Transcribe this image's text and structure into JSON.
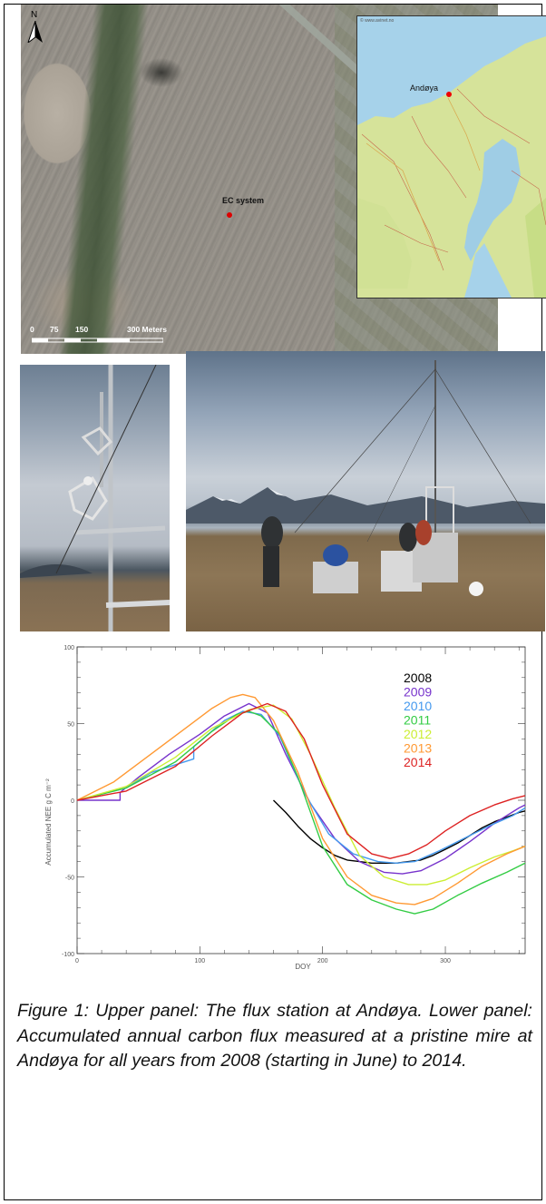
{
  "aerial": {
    "north_label": "N",
    "site_label": "EC system",
    "scale_ticks": [
      "0",
      "75",
      "150",
      "300 Meters"
    ]
  },
  "inset_map": {
    "credit": "© www.avinet.no",
    "place_label": "Andøya"
  },
  "chart_data": {
    "type": "line",
    "xlabel": "DOY",
    "ylabel": "Accumulated NEE g C m⁻²",
    "xlim": [
      0,
      365
    ],
    "ylim": [
      -100,
      100
    ],
    "xticks": [
      "0",
      "100",
      "200",
      "300"
    ],
    "yticks": [
      "100",
      "50",
      "0",
      "-50",
      "-100"
    ],
    "legend_position": "top-right",
    "series": [
      {
        "name": "2008",
        "color": "#000000",
        "x": [
          160,
          170,
          180,
          190,
          200,
          210,
          220,
          230,
          240,
          250,
          260,
          270,
          280,
          290,
          300,
          310,
          320,
          330,
          340,
          350,
          360,
          365
        ],
        "y": [
          0,
          -8,
          -17,
          -25,
          -31,
          -36,
          -39,
          -40,
          -41,
          -41,
          -41,
          -40,
          -39,
          -36,
          -32,
          -28,
          -23,
          -18,
          -14,
          -11,
          -8,
          -7
        ]
      },
      {
        "name": "2009",
        "color": "#7733cc",
        "x": [
          0,
          35,
          35,
          50,
          75,
          100,
          120,
          140,
          155,
          170,
          190,
          210,
          230,
          250,
          265,
          280,
          300,
          320,
          340,
          360,
          365
        ],
        "y": [
          0,
          0,
          5,
          15,
          30,
          43,
          55,
          63,
          57,
          30,
          -2,
          -25,
          -40,
          -47,
          -48,
          -46,
          -38,
          -27,
          -15,
          -5,
          -3
        ]
      },
      {
        "name": "2010",
        "color": "#4499ee",
        "x": [
          0,
          40,
          60,
          95,
          95,
          120,
          135,
          150,
          165,
          185,
          205,
          225,
          245,
          260,
          275,
          295,
          315,
          335,
          355,
          365
        ],
        "y": [
          0,
          8,
          18,
          27,
          35,
          52,
          58,
          56,
          42,
          5,
          -22,
          -35,
          -40,
          -41,
          -40,
          -33,
          -25,
          -17,
          -10,
          -5
        ]
      },
      {
        "name": "2011",
        "color": "#33cc44",
        "x": [
          0,
          40,
          80,
          110,
          130,
          140,
          150,
          165,
          180,
          200,
          220,
          240,
          260,
          275,
          290,
          310,
          330,
          350,
          365
        ],
        "y": [
          0,
          8,
          25,
          45,
          56,
          58,
          55,
          43,
          15,
          -30,
          -55,
          -65,
          -71,
          -74,
          -71,
          -62,
          -54,
          -47,
          -41
        ]
      },
      {
        "name": "2012",
        "color": "#ccee33",
        "x": [
          0,
          40,
          80,
          110,
          140,
          160,
          175,
          190,
          210,
          230,
          250,
          270,
          285,
          300,
          320,
          340,
          355,
          365
        ],
        "y": [
          0,
          9,
          28,
          47,
          59,
          62,
          53,
          30,
          -5,
          -36,
          -50,
          -55,
          -55,
          -52,
          -44,
          -37,
          -33,
          -30
        ]
      },
      {
        "name": "2013",
        "color": "#ff9933",
        "x": [
          0,
          30,
          60,
          90,
          110,
          125,
          135,
          145,
          160,
          180,
          200,
          220,
          240,
          260,
          275,
          290,
          310,
          330,
          350,
          365
        ],
        "y": [
          0,
          12,
          30,
          48,
          60,
          67,
          69,
          67,
          52,
          18,
          -25,
          -50,
          -62,
          -67,
          -68,
          -64,
          -54,
          -43,
          -35,
          -30
        ]
      },
      {
        "name": "2014",
        "color": "#dd2222",
        "x": [
          0,
          40,
          80,
          110,
          135,
          155,
          170,
          185,
          200,
          220,
          240,
          255,
          270,
          285,
          300,
          320,
          340,
          355,
          365
        ],
        "y": [
          0,
          6,
          22,
          42,
          57,
          63,
          58,
          40,
          10,
          -22,
          -35,
          -38,
          -35,
          -29,
          -20,
          -10,
          -3,
          1,
          3
        ]
      }
    ]
  },
  "caption": "Figure 1:  Upper panel: The flux station at Andøya. Lower panel: Accumulated annual carbon flux measured at a pristine mire at Andøya for all years from 2008 (starting in June) to 2014."
}
